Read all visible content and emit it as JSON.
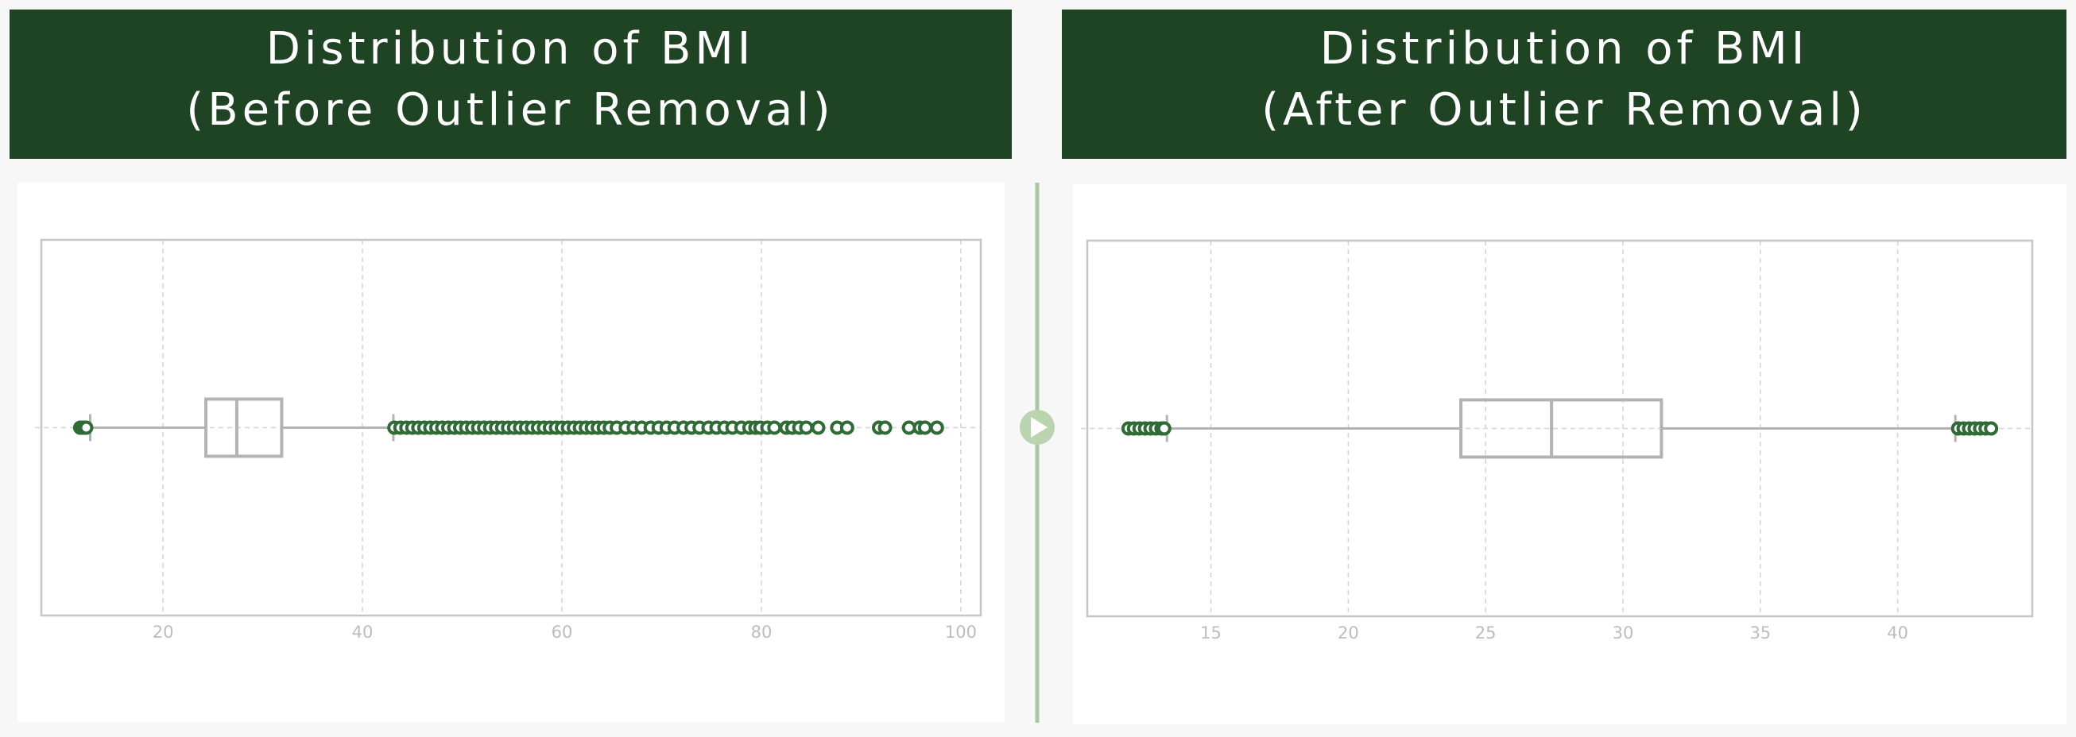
{
  "chart_data": [
    {
      "type": "box",
      "title": [
        "Distribution of BMI",
        "(Before Outlier Removal)"
      ],
      "whislo": 12.7,
      "q1": 24.3,
      "med": 27.4,
      "q3": 31.9,
      "whishi": 43.1,
      "outliers": [
        11.7,
        11.9,
        12.1,
        12.3,
        43.2,
        43.8,
        44.4,
        45,
        45.6,
        46.2,
        46.8,
        47.4,
        48,
        48.6,
        49.2,
        49.8,
        50.4,
        51,
        51.6,
        52.2,
        52.8,
        53.4,
        54,
        54.6,
        55.2,
        55.8,
        56.4,
        57,
        57.6,
        58.2,
        58.8,
        59.4,
        60,
        60.6,
        61.2,
        61.8,
        62.4,
        63,
        63.6,
        64.2,
        64.8,
        65.5,
        66.4,
        67.2,
        68,
        68.9,
        69.7,
        70.5,
        71.3,
        72.2,
        73,
        73.8,
        74.7,
        75.5,
        76.3,
        77.1,
        78,
        78.8,
        79.4,
        79.9,
        80.6,
        81.3,
        82.5,
        83.1,
        83.8,
        84.5,
        85.7,
        87.6,
        88.6,
        91.8,
        92.4,
        94.8,
        95.9,
        96.4,
        97.6
      ],
      "xlim": [
        7.8,
        102
      ],
      "xticks": [
        20,
        40,
        60,
        80,
        100
      ],
      "grid": true,
      "color": "#2e6b35",
      "box_color": "#b3b3b3"
    },
    {
      "type": "box",
      "title": [
        "Distribution of BMI",
        "(After Outlier Removal)"
      ],
      "whislo": 13.4,
      "q1": 24.1,
      "med": 27.4,
      "q3": 31.4,
      "whishi": 42.1,
      "outliers": [
        12,
        12.2,
        12.4,
        12.6,
        12.8,
        13,
        13.2,
        13.3,
        42.2,
        42.4,
        42.6,
        42.8,
        43,
        43.2,
        43.4
      ],
      "xlim": [
        10.5,
        44.9
      ],
      "xticks": [
        15,
        20,
        25,
        30,
        35,
        40
      ],
      "grid": true,
      "color": "#2e6b35",
      "box_color": "#b3b3b3"
    }
  ]
}
